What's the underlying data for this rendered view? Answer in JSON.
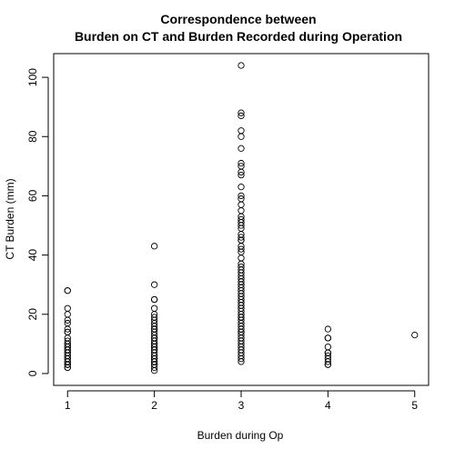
{
  "chart_data": {
    "type": "scatter",
    "title": "Correspondence between",
    "subtitle": "Burden on CT and Burden Recorded during Operation",
    "xlabel": "Burden during Op",
    "ylabel": "CT Burden (mm)",
    "xlim": [
      0.84,
      5.16
    ],
    "ylim": [
      -4,
      108
    ],
    "xticks": [
      1,
      2,
      3,
      4,
      5
    ],
    "yticks": [
      0,
      20,
      40,
      60,
      80,
      100
    ],
    "grid": false,
    "legend": "none",
    "marker": "open-circle",
    "colors": {
      "points": "#000000",
      "axes": "#000000",
      "background": "#ffffff"
    },
    "series": [
      {
        "x": [
          1,
          1,
          1,
          1,
          1,
          1,
          1,
          1,
          1,
          1,
          1,
          1,
          1,
          1,
          1,
          1,
          1,
          1,
          1,
          1,
          1,
          1,
          1,
          1,
          1,
          1,
          1,
          1,
          1,
          1
        ],
        "y": [
          28,
          28,
          22,
          20,
          18,
          17,
          15,
          14,
          14,
          12,
          11,
          10,
          10,
          9,
          9,
          8,
          8,
          7,
          7,
          6,
          6,
          5,
          5,
          4,
          4,
          3,
          3,
          3,
          2,
          2
        ]
      },
      {
        "x": [
          2,
          2,
          2,
          2,
          2,
          2,
          2,
          2,
          2,
          2,
          2,
          2,
          2,
          2,
          2,
          2,
          2,
          2,
          2,
          2,
          2,
          2,
          2,
          2,
          2,
          2,
          2,
          2,
          2,
          2,
          2,
          2,
          2,
          2
        ],
        "y": [
          43,
          30,
          25,
          25,
          22,
          20,
          19,
          18,
          17,
          16,
          15,
          15,
          14,
          13,
          12,
          12,
          11,
          10,
          10,
          9,
          9,
          8,
          8,
          7,
          6,
          6,
          5,
          5,
          4,
          4,
          3,
          3,
          2,
          1
        ]
      },
      {
        "x": [
          3,
          3,
          3,
          3,
          3,
          3,
          3,
          3,
          3,
          3,
          3,
          3,
          3,
          3,
          3,
          3,
          3,
          3,
          3,
          3,
          3,
          3,
          3,
          3,
          3,
          3,
          3,
          3,
          3,
          3,
          3,
          3,
          3,
          3,
          3,
          3,
          3,
          3,
          3,
          3,
          3,
          3,
          3,
          3,
          3,
          3,
          3,
          3,
          3,
          3,
          3,
          3,
          3,
          3,
          3,
          3,
          3,
          3,
          3,
          3,
          3,
          3,
          3,
          3
        ],
        "y": [
          104,
          88,
          87,
          82,
          80,
          76,
          71,
          70,
          68,
          67,
          63,
          60,
          59,
          57,
          55,
          53,
          52,
          51,
          50,
          49,
          47,
          46,
          45,
          45,
          43,
          42,
          41,
          39,
          37,
          36,
          35,
          34,
          33,
          32,
          31,
          30,
          29,
          28,
          27,
          26,
          25,
          24,
          23,
          22,
          21,
          20,
          19,
          18,
          17,
          16,
          15,
          14,
          13,
          12,
          11,
          10,
          9,
          8,
          7,
          6,
          5,
          4,
          14,
          19
        ]
      },
      {
        "x": [
          4,
          4,
          4,
          4,
          4,
          4,
          4,
          4,
          4,
          4,
          4
        ],
        "y": [
          15,
          12,
          9,
          7,
          6,
          5,
          4,
          3,
          3,
          12,
          7
        ]
      },
      {
        "x": [
          5
        ],
        "y": [
          13
        ]
      }
    ]
  }
}
